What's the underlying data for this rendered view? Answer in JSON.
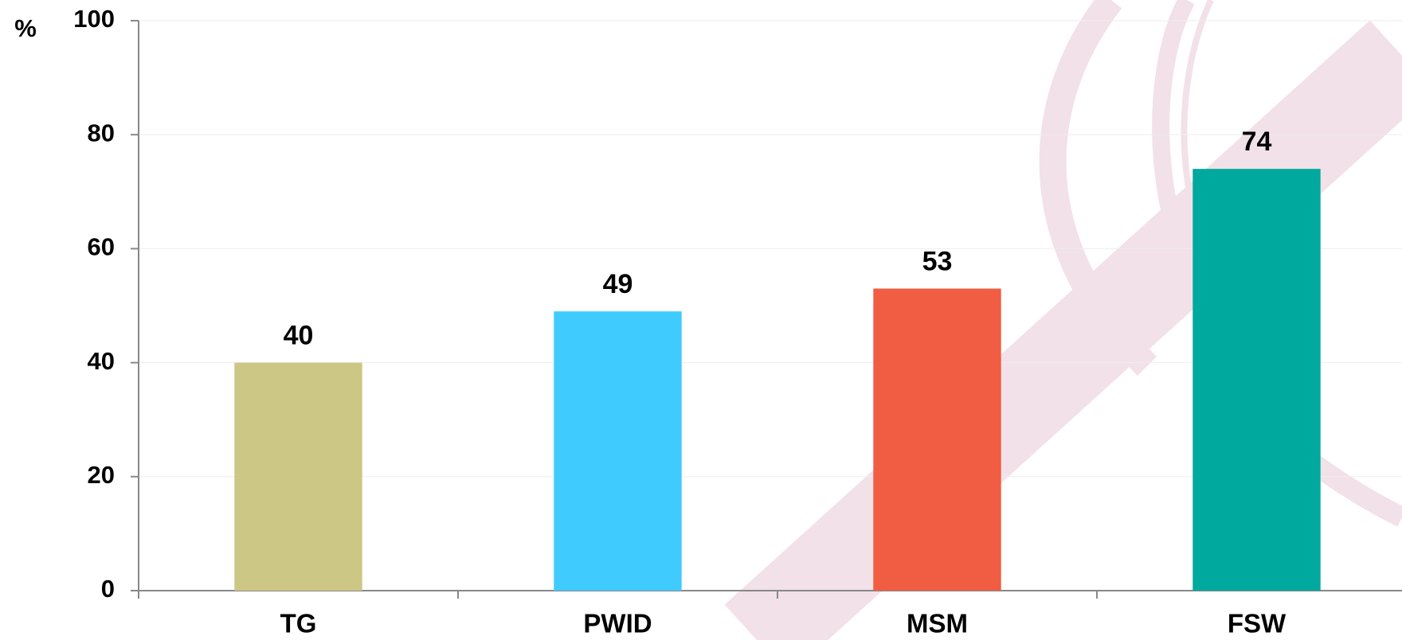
{
  "chart_data": {
    "type": "bar",
    "y_label": "%",
    "categories": [
      "TG",
      "PWID",
      "MSM",
      "FSW"
    ],
    "values": [
      40,
      49,
      53,
      74
    ],
    "colors": [
      "#cdc785",
      "#40cbff",
      "#f05d43",
      "#00a99d"
    ],
    "ylim": [
      0,
      100
    ],
    "yticks": [
      0,
      20,
      40,
      60,
      80,
      100
    ],
    "grid": true
  }
}
